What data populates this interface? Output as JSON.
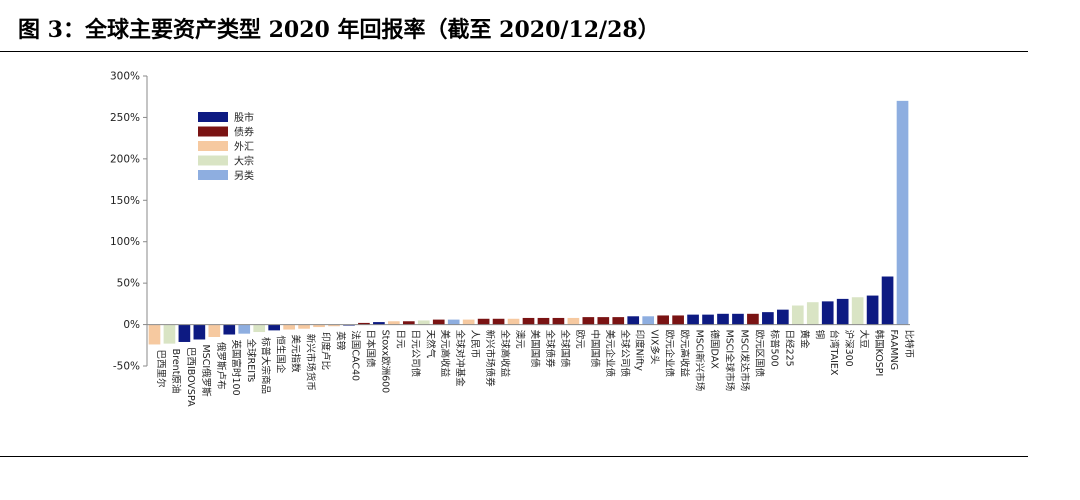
{
  "header": {
    "title": "图 3：全球主要资产类型 2020 年回报率（截至 2020/12/28）"
  },
  "colors": {
    "股市": "#0d1a82",
    "债券": "#7a1313",
    "外汇": "#f6c9a0",
    "大宗": "#d9e4c4",
    "另类": "#8eaee0"
  },
  "chart_data": {
    "type": "bar",
    "ylim": [
      -50,
      300
    ],
    "yticks": [
      -50,
      0,
      50,
      100,
      150,
      200,
      250,
      300
    ],
    "ytick_labels": [
      "-50%",
      "0%",
      "50%",
      "100%",
      "150%",
      "200%",
      "250%",
      "300%"
    ],
    "legend": {
      "position": "top-left",
      "entries": [
        "股市",
        "债券",
        "外汇",
        "大宗",
        "另类"
      ]
    },
    "bars": [
      {
        "label": "巴西里尔",
        "value": -24,
        "cat": "外汇"
      },
      {
        "label": "Brent原油",
        "value": -23,
        "cat": "大宗"
      },
      {
        "label": "巴西IBOVSPA",
        "value": -21,
        "cat": "股市"
      },
      {
        "label": "MSCI俄罗斯",
        "value": -18,
        "cat": "股市"
      },
      {
        "label": "俄罗斯卢布",
        "value": -15,
        "cat": "外汇"
      },
      {
        "label": "英国富时100",
        "value": -12,
        "cat": "股市"
      },
      {
        "label": "全球REITs",
        "value": -11,
        "cat": "另类"
      },
      {
        "label": "标普大宗商品",
        "value": -9,
        "cat": "大宗"
      },
      {
        "label": "恒生国企",
        "value": -7,
        "cat": "股市"
      },
      {
        "label": "美元指数",
        "value": -6,
        "cat": "外汇"
      },
      {
        "label": "新兴市场货币",
        "value": -5,
        "cat": "外汇"
      },
      {
        "label": "印度卢比",
        "value": -3,
        "cat": "外汇"
      },
      {
        "label": "英镑",
        "value": -2,
        "cat": "外汇"
      },
      {
        "label": "法国CAC40",
        "value": -1,
        "cat": "股市"
      },
      {
        "label": "日本国债",
        "value": 2,
        "cat": "债券"
      },
      {
        "label": "Stoxx欧洲600",
        "value": 3,
        "cat": "股市"
      },
      {
        "label": "日元",
        "value": 4,
        "cat": "外汇"
      },
      {
        "label": "日元公司债",
        "value": 4,
        "cat": "债券"
      },
      {
        "label": "天然气",
        "value": 5,
        "cat": "大宗"
      },
      {
        "label": "美元高收益",
        "value": 6,
        "cat": "债券"
      },
      {
        "label": "全球对冲基金",
        "value": 6,
        "cat": "另类"
      },
      {
        "label": "人民币",
        "value": 6,
        "cat": "外汇"
      },
      {
        "label": "新兴市场债券",
        "value": 7,
        "cat": "债券"
      },
      {
        "label": "全球高收益",
        "value": 7,
        "cat": "债券"
      },
      {
        "label": "澳元",
        "value": 7,
        "cat": "外汇"
      },
      {
        "label": "美国国债",
        "value": 8,
        "cat": "债券"
      },
      {
        "label": "全球债券",
        "value": 8,
        "cat": "债券"
      },
      {
        "label": "全球国债",
        "value": 8,
        "cat": "债券"
      },
      {
        "label": "欧元",
        "value": 8,
        "cat": "外汇"
      },
      {
        "label": "中国国债",
        "value": 9,
        "cat": "债券"
      },
      {
        "label": "美元企业债",
        "value": 9,
        "cat": "债券"
      },
      {
        "label": "全球公司债",
        "value": 9,
        "cat": "债券"
      },
      {
        "label": "印度Nifty",
        "value": 10,
        "cat": "股市"
      },
      {
        "label": "VIX多头",
        "value": 10,
        "cat": "另类"
      },
      {
        "label": "欧元企业债",
        "value": 11,
        "cat": "债券"
      },
      {
        "label": "欧元高收益",
        "value": 11,
        "cat": "债券"
      },
      {
        "label": "MSCI新兴市场",
        "value": 12,
        "cat": "股市"
      },
      {
        "label": "德国DAX",
        "value": 12,
        "cat": "股市"
      },
      {
        "label": "MSCI全球市场",
        "value": 13,
        "cat": "股市"
      },
      {
        "label": "MSCI发达市场",
        "value": 13,
        "cat": "股市"
      },
      {
        "label": "欧元区国债",
        "value": 13,
        "cat": "债券"
      },
      {
        "label": "标普500",
        "value": 15,
        "cat": "股市"
      },
      {
        "label": "日经225",
        "value": 18,
        "cat": "股市"
      },
      {
        "label": "黄金",
        "value": 23,
        "cat": "大宗"
      },
      {
        "label": "铜",
        "value": 27,
        "cat": "大宗"
      },
      {
        "label": "台湾TAIEX",
        "value": 28,
        "cat": "股市"
      },
      {
        "label": "沪深300",
        "value": 31,
        "cat": "股市"
      },
      {
        "label": "大豆",
        "value": 33,
        "cat": "大宗"
      },
      {
        "label": "韩国KOSPI",
        "value": 35,
        "cat": "股市"
      },
      {
        "label": "FAAMNG",
        "value": 58,
        "cat": "股市"
      },
      {
        "label": "比特币",
        "value": 270,
        "cat": "另类"
      }
    ]
  }
}
